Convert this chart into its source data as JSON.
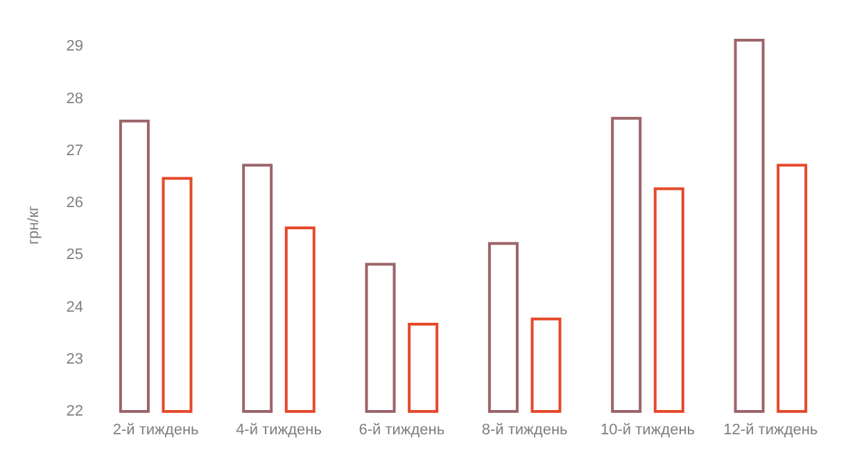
{
  "chart_data": {
    "type": "bar",
    "ylabel": "грн/кг",
    "categories": [
      "2-й тиждень",
      "4-й тиждень",
      "6-й тиждень",
      "8-й тиждень",
      "10-й тиждень",
      "12-й тиждень"
    ],
    "series": [
      {
        "color": "#9b6469",
        "values": [
          27.6,
          26.75,
          24.85,
          25.25,
          27.65,
          29.15
        ]
      },
      {
        "color": "#e5492a",
        "values": [
          26.5,
          25.55,
          23.7,
          23.8,
          26.3,
          26.75
        ]
      }
    ],
    "ylim": [
      22,
      29.15
    ],
    "yticks": [
      22,
      23,
      24,
      25,
      26,
      27,
      28,
      29
    ],
    "grid": false
  }
}
